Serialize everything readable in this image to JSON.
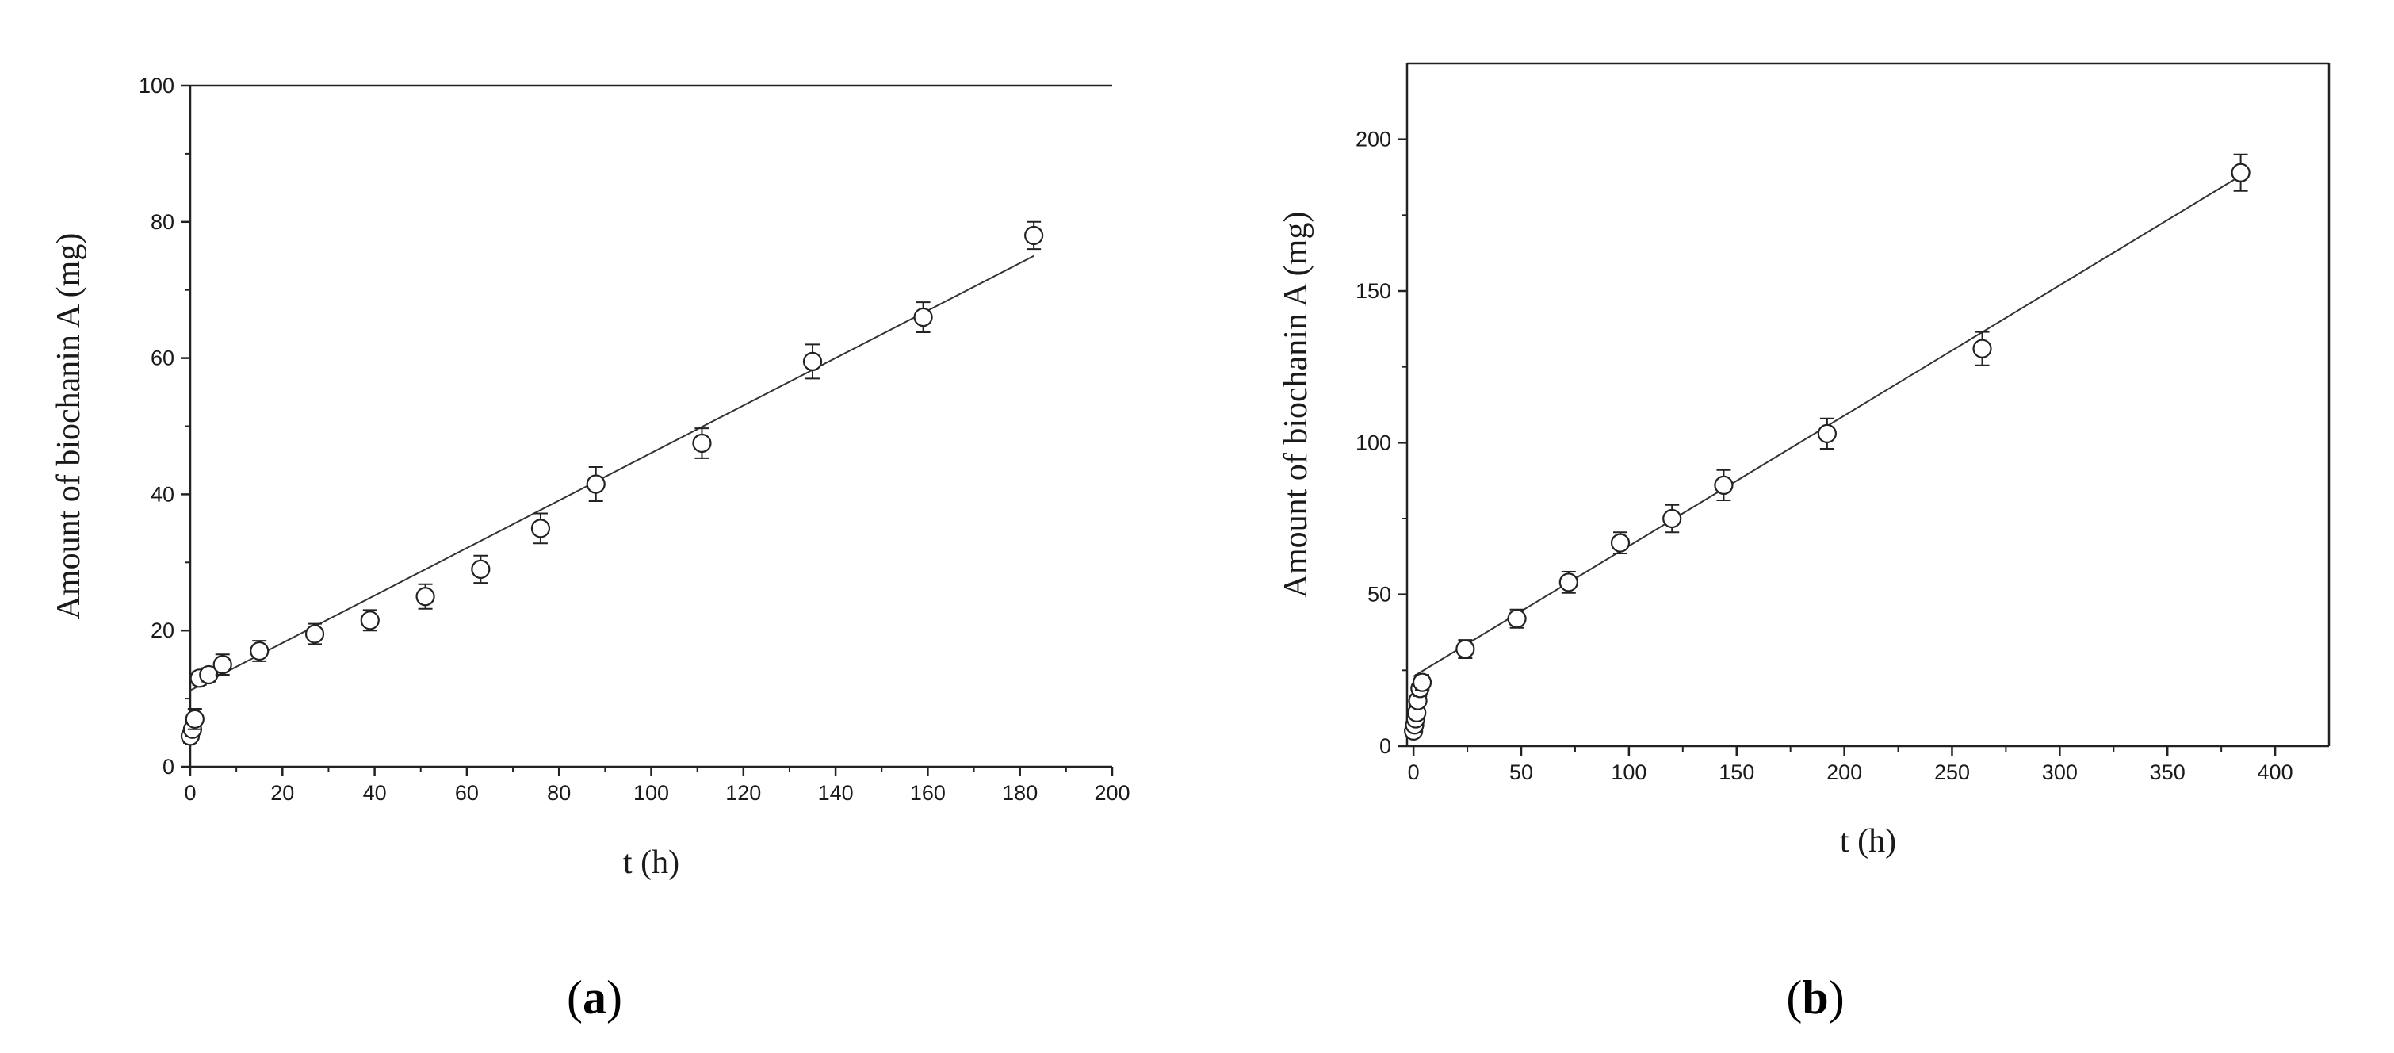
{
  "chart_data": [
    {
      "type": "scatter",
      "panel_label": "a",
      "xlabel": "t (h)",
      "ylabel": "Amount of biochanin A (mg)",
      "xlim": [
        0,
        200
      ],
      "ylim": [
        0,
        100
      ],
      "xticks": [
        0,
        20,
        40,
        60,
        80,
        100,
        120,
        140,
        160,
        180,
        200
      ],
      "yticks": [
        0,
        20,
        40,
        60,
        80,
        100
      ],
      "grid": false,
      "series": [
        {
          "marker": "open-circle",
          "x": [
            0,
            0.5,
            1,
            2,
            4,
            7,
            15,
            27,
            39,
            51,
            63,
            76,
            88,
            111,
            135,
            159,
            183
          ],
          "y": [
            4.5,
            5.5,
            7,
            13,
            13.5,
            15,
            17,
            19.5,
            21.5,
            25,
            29,
            35,
            41.5,
            47.5,
            59.5,
            66,
            78
          ],
          "error": [
            1,
            1,
            1.5,
            1,
            1,
            1.5,
            1.5,
            1.5,
            1.5,
            1.8,
            2,
            2.2,
            2.5,
            2.2,
            2.5,
            2.2,
            2
          ]
        }
      ],
      "fit_line": {
        "x": [
          0,
          183
        ],
        "y": [
          11.2,
          75
        ]
      }
    },
    {
      "type": "scatter",
      "panel_label": "b",
      "xlabel": "t (h)",
      "ylabel": "Amount of biochanin A (mg)",
      "xlim": [
        -3,
        425
      ],
      "ylim": [
        0,
        225
      ],
      "xticks": [
        0,
        50,
        100,
        150,
        200,
        250,
        300,
        350,
        400
      ],
      "yticks": [
        0,
        50,
        100,
        150,
        200
      ],
      "grid": false,
      "series": [
        {
          "marker": "open-circle",
          "x": [
            0,
            0.5,
            1,
            1.5,
            2,
            3,
            4,
            24,
            48,
            72,
            96,
            120,
            144,
            192,
            264,
            384
          ],
          "y": [
            5,
            7,
            9,
            11,
            15,
            19,
            21,
            32,
            42,
            54,
            67,
            75,
            86,
            103,
            131,
            189
          ],
          "error": [
            1.5,
            1.5,
            2,
            2,
            2,
            2.5,
            2.5,
            3,
            3,
            3.5,
            3.5,
            4.5,
            5,
            5,
            5.5,
            6
          ]
        }
      ],
      "fit_line": {
        "x": [
          0,
          384
        ],
        "y": [
          23,
          188
        ]
      }
    }
  ]
}
